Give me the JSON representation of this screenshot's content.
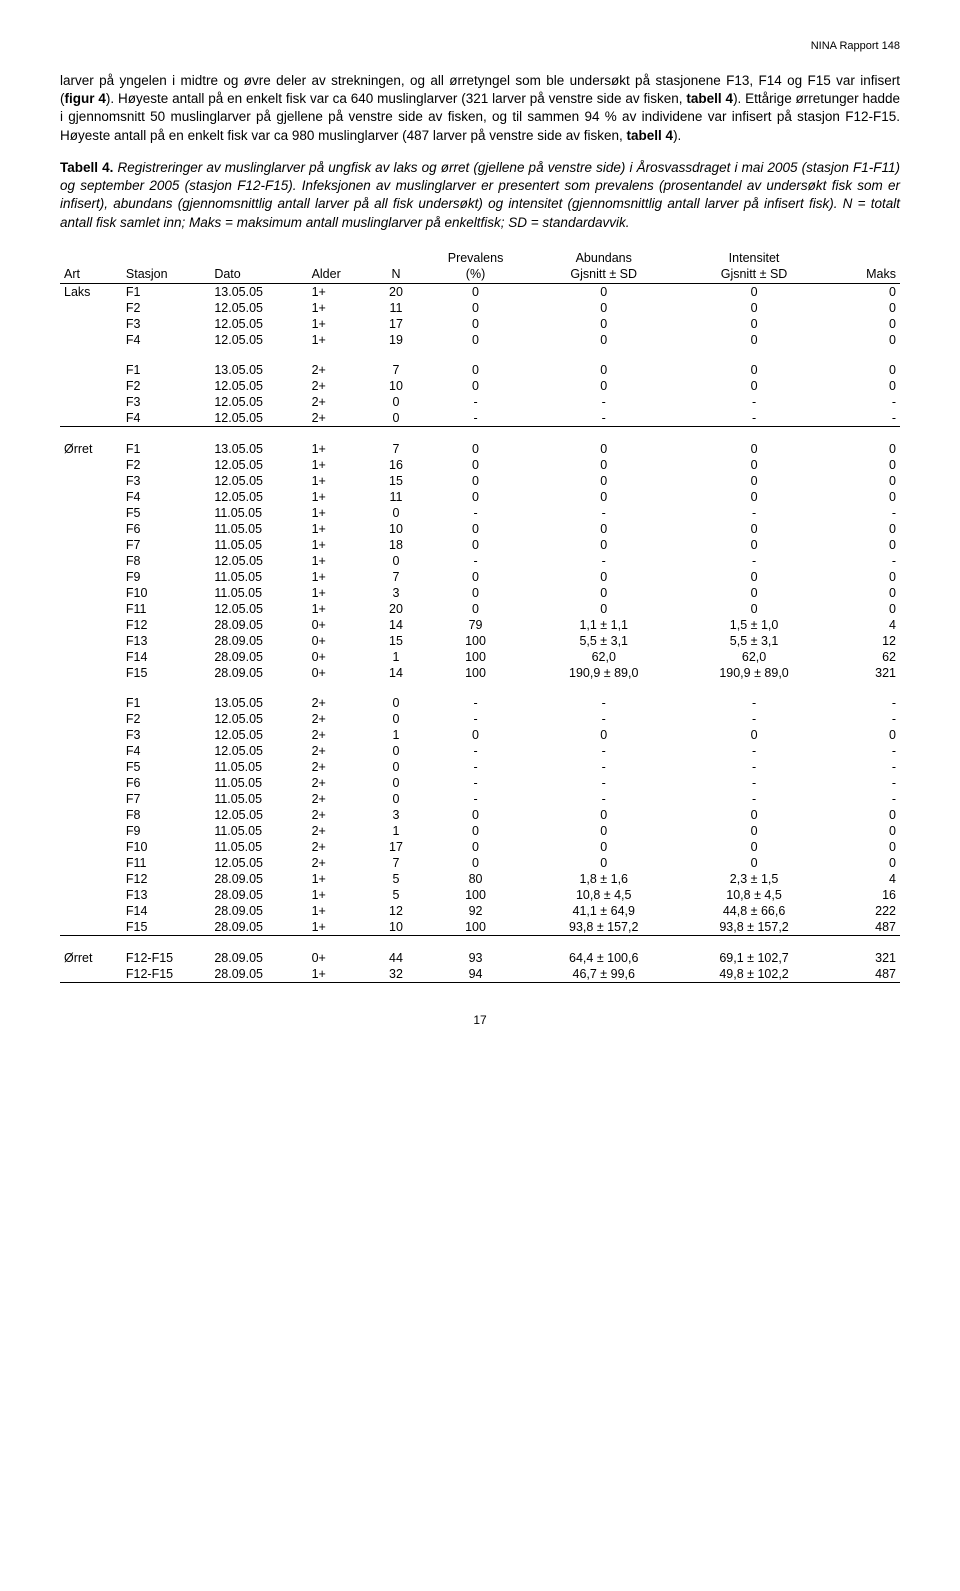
{
  "header": "NINA Rapport 148",
  "para1_a": "larver på yngelen i midtre og øvre deler av strekningen, og all ørretyngel som ble undersøkt på stasjonene F13, F14 og F15 var infisert (",
  "para1_fig": "figur 4",
  "para1_b": "). Høyeste antall på en enkelt fisk var ca 640 muslinglarver (321 larver på venstre side av fisken, ",
  "para1_tab": "tabell 4",
  "para1_c": "). Ettårige ørretunger hadde i gjennomsnitt 50 muslinglarver på gjellene på venstre side av fisken, og til sammen 94 % av individene var infisert på stasjon F12-F15. Høyeste antall på en enkelt fisk var ca 980 muslinglarver (487 larver på venstre side av fisken, ",
  "para1_tab2": "tabell 4",
  "para1_d": ").",
  "caption_lead": "Tabell 4.",
  "caption_body": " Registreringer av muslinglarver på ungfisk av laks og ørret (gjellene på venstre side) i Årosvassdraget i mai 2005 (stasjon F1-F11) og september 2005 (stasjon F12-F15). Infeksjonen av muslinglarver er presentert som prevalens (prosentandel av undersøkt fisk som er infisert), abundans (gjennomsnittlig antall larver på all fisk undersøkt) og intensitet (gjennomsnittlig antall larver på infisert fisk). N = totalt antall fisk samlet inn; Maks = maksimum antall muslinglarver på enkeltfisk; SD = standardavvik.",
  "thead": {
    "art": "Art",
    "stasjon": "Stasjon",
    "dato": "Dato",
    "alder": "Alder",
    "n": "N",
    "prev_top": "Prevalens",
    "prev_bot": "(%)",
    "abun_top": "Abundans",
    "abun_bot": "Gjsnitt ± SD",
    "int_top": "Intensitet",
    "int_bot": "Gjsnitt ± SD",
    "maks": "Maks"
  },
  "groups": [
    {
      "rows": [
        [
          "Laks",
          "F1",
          "13.05.05",
          "1+",
          "20",
          "0",
          "0",
          "0",
          "0"
        ],
        [
          "",
          "F2",
          "12.05.05",
          "1+",
          "11",
          "0",
          "0",
          "0",
          "0"
        ],
        [
          "",
          "F3",
          "12.05.05",
          "1+",
          "17",
          "0",
          "0",
          "0",
          "0"
        ],
        [
          "",
          "F4",
          "12.05.05",
          "1+",
          "19",
          "0",
          "0",
          "0",
          "0"
        ]
      ]
    },
    {
      "rows": [
        [
          "",
          "F1",
          "13.05.05",
          "2+",
          "7",
          "0",
          "0",
          "0",
          "0"
        ],
        [
          "",
          "F2",
          "12.05.05",
          "2+",
          "10",
          "0",
          "0",
          "0",
          "0"
        ],
        [
          "",
          "F3",
          "12.05.05",
          "2+",
          "0",
          "-",
          "-",
          "-",
          "-"
        ],
        [
          "",
          "F4",
          "12.05.05",
          "2+",
          "0",
          "-",
          "-",
          "-",
          "-"
        ]
      ],
      "endline": true
    },
    {
      "rows": [
        [
          "Ørret",
          "F1",
          "13.05.05",
          "1+",
          "7",
          "0",
          "0",
          "0",
          "0"
        ],
        [
          "",
          "F2",
          "12.05.05",
          "1+",
          "16",
          "0",
          "0",
          "0",
          "0"
        ],
        [
          "",
          "F3",
          "12.05.05",
          "1+",
          "15",
          "0",
          "0",
          "0",
          "0"
        ],
        [
          "",
          "F4",
          "12.05.05",
          "1+",
          "11",
          "0",
          "0",
          "0",
          "0"
        ],
        [
          "",
          "F5",
          "11.05.05",
          "1+",
          "0",
          "-",
          "-",
          "-",
          "-"
        ],
        [
          "",
          "F6",
          "11.05.05",
          "1+",
          "10",
          "0",
          "0",
          "0",
          "0"
        ],
        [
          "",
          "F7",
          "11.05.05",
          "1+",
          "18",
          "0",
          "0",
          "0",
          "0"
        ],
        [
          "",
          "F8",
          "12.05.05",
          "1+",
          "0",
          "-",
          "-",
          "-",
          "-"
        ],
        [
          "",
          "F9",
          "11.05.05",
          "1+",
          "7",
          "0",
          "0",
          "0",
          "0"
        ],
        [
          "",
          "F10",
          "11.05.05",
          "1+",
          "3",
          "0",
          "0",
          "0",
          "0"
        ],
        [
          "",
          "F11",
          "12.05.05",
          "1+",
          "20",
          "0",
          "0",
          "0",
          "0"
        ],
        [
          "",
          "F12",
          "28.09.05",
          "0+",
          "14",
          "79",
          "1,1 ± 1,1",
          "1,5 ± 1,0",
          "4"
        ],
        [
          "",
          "F13",
          "28.09.05",
          "0+",
          "15",
          "100",
          "5,5 ± 3,1",
          "5,5 ± 3,1",
          "12"
        ],
        [
          "",
          "F14",
          "28.09.05",
          "0+",
          "1",
          "100",
          "62,0",
          "62,0",
          "62"
        ],
        [
          "",
          "F15",
          "28.09.05",
          "0+",
          "14",
          "100",
          "190,9 ± 89,0",
          "190,9 ± 89,0",
          "321"
        ]
      ]
    },
    {
      "rows": [
        [
          "",
          "F1",
          "13.05.05",
          "2+",
          "0",
          "-",
          "-",
          "-",
          "-"
        ],
        [
          "",
          "F2",
          "12.05.05",
          "2+",
          "0",
          "-",
          "-",
          "-",
          "-"
        ],
        [
          "",
          "F3",
          "12.05.05",
          "2+",
          "1",
          "0",
          "0",
          "0",
          "0"
        ],
        [
          "",
          "F4",
          "12.05.05",
          "2+",
          "0",
          "-",
          "-",
          "-",
          "-"
        ],
        [
          "",
          "F5",
          "11.05.05",
          "2+",
          "0",
          "-",
          "-",
          "-",
          "-"
        ],
        [
          "",
          "F6",
          "11.05.05",
          "2+",
          "0",
          "-",
          "-",
          "-",
          "-"
        ],
        [
          "",
          "F7",
          "11.05.05",
          "2+",
          "0",
          "-",
          "-",
          "-",
          "-"
        ],
        [
          "",
          "F8",
          "12.05.05",
          "2+",
          "3",
          "0",
          "0",
          "0",
          "0"
        ],
        [
          "",
          "F9",
          "11.05.05",
          "2+",
          "1",
          "0",
          "0",
          "0",
          "0"
        ],
        [
          "",
          "F10",
          "11.05.05",
          "2+",
          "17",
          "0",
          "0",
          "0",
          "0"
        ],
        [
          "",
          "F11",
          "12.05.05",
          "2+",
          "7",
          "0",
          "0",
          "0",
          "0"
        ],
        [
          "",
          "F12",
          "28.09.05",
          "1+",
          "5",
          "80",
          "1,8 ± 1,6",
          "2,3 ± 1,5",
          "4"
        ],
        [
          "",
          "F13",
          "28.09.05",
          "1+",
          "5",
          "100",
          "10,8 ± 4,5",
          "10,8 ± 4,5",
          "16"
        ],
        [
          "",
          "F14",
          "28.09.05",
          "1+",
          "12",
          "92",
          "41,1 ± 64,9",
          "44,8 ± 66,6",
          "222"
        ],
        [
          "",
          "F15",
          "28.09.05",
          "1+",
          "10",
          "100",
          "93,8 ± 157,2",
          "93,8 ± 157,2",
          "487"
        ]
      ],
      "endline": true
    },
    {
      "rows": [
        [
          "Ørret",
          "F12-F15",
          "28.09.05",
          "0+",
          "44",
          "93",
          "64,4 ± 100,6",
          "69,1 ± 102,7",
          "321"
        ],
        [
          "",
          "F12-F15",
          "28.09.05",
          "1+",
          "32",
          "94",
          "46,7 ± 99,6",
          "49,8 ± 102,2",
          "487"
        ]
      ],
      "endline": true
    }
  ],
  "page_number": "17"
}
